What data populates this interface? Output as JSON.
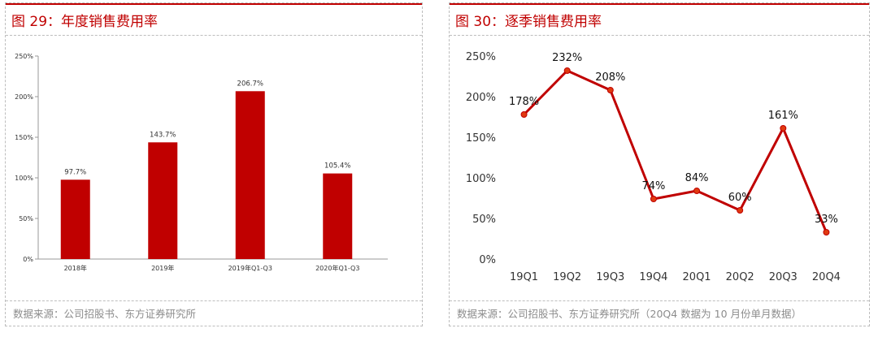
{
  "panel1": {
    "title": "图 29：年度销售费用率",
    "source": "数据来源：公司招股书、东方证券研究所"
  },
  "panel2": {
    "title": "图 30：逐季销售费用率",
    "source": "数据来源：公司招股书、东方证券研究所（20Q4 数据为 10 月份单月数据）"
  },
  "chart_data": [
    {
      "type": "bar",
      "title": "图 29：年度销售费用率",
      "categories": [
        "2018年",
        "2019年",
        "2019年Q1-Q3",
        "2020年Q1-Q3"
      ],
      "values": [
        97.7,
        143.7,
        206.7,
        105.4
      ],
      "value_labels": [
        "97.7%",
        "143.7%",
        "206.7%",
        "105.4%"
      ],
      "yticks": [
        "0%",
        "50%",
        "100%",
        "150%",
        "200%",
        "250%"
      ],
      "ylim": [
        0,
        250
      ],
      "color": "#c00000",
      "grid": false,
      "xlabel": "",
      "ylabel": ""
    },
    {
      "type": "line",
      "title": "图 30：逐季销售费用率",
      "categories": [
        "19Q1",
        "19Q2",
        "19Q3",
        "19Q4",
        "20Q1",
        "20Q2",
        "20Q3",
        "20Q4"
      ],
      "values": [
        178,
        232,
        208,
        74,
        84,
        60,
        161,
        33
      ],
      "value_labels": [
        "178%",
        "232%",
        "208%",
        "74%",
        "84%",
        "60%",
        "161%",
        "33%"
      ],
      "yticks": [
        "0%",
        "50%",
        "100%",
        "150%",
        "200%",
        "250%"
      ],
      "ylim": [
        0,
        250
      ],
      "color": "#c00000",
      "grid": false,
      "xlabel": "",
      "ylabel": ""
    }
  ]
}
